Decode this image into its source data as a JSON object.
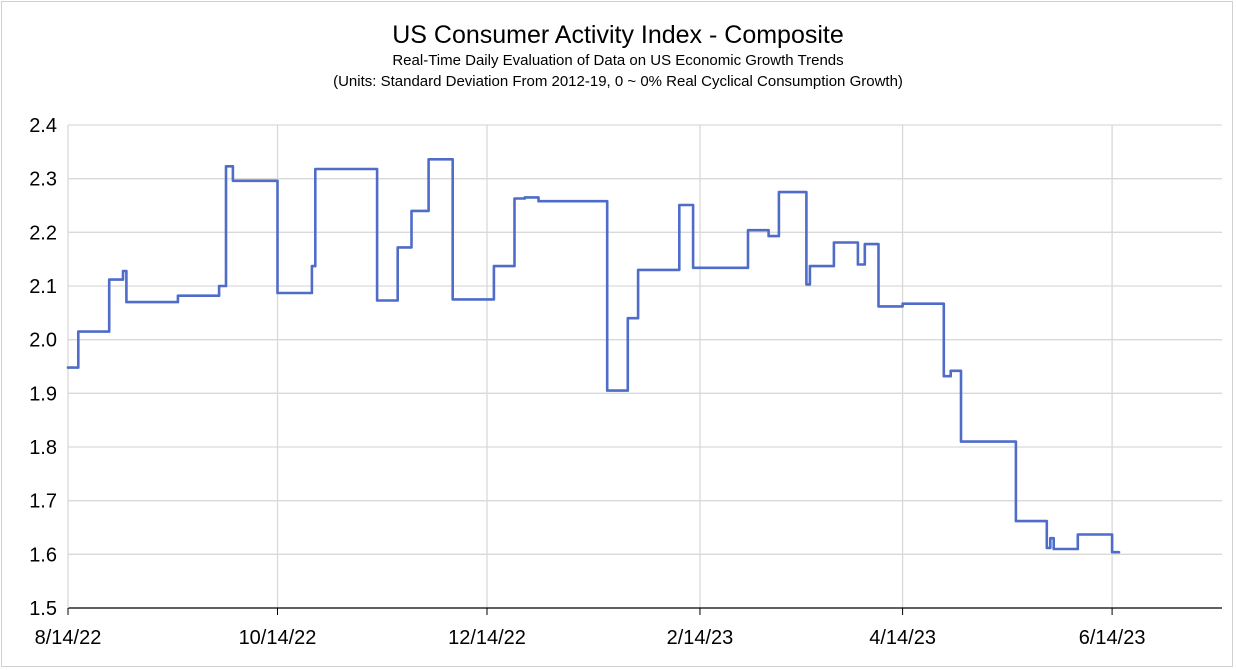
{
  "chart_data": {
    "type": "line",
    "title": "US Consumer Activity Index - Composite",
    "subtitle": "Real-Time Daily Evaluation of Data on US Economic Growth Trends",
    "subtitle2": "(Units: Standard Deviation From 2012-19, 0 ~ 0% Real Cyclical Consumption Growth)",
    "xlabel": "",
    "ylabel": "",
    "ylim": [
      1.5,
      2.4
    ],
    "yticks": [
      "2.4",
      "2.3",
      "2.2",
      "2.1",
      "2.0",
      "1.9",
      "1.8",
      "1.7",
      "1.6",
      "1.5"
    ],
    "xticks": [
      "8/14/22",
      "10/14/22",
      "12/14/22",
      "2/14/23",
      "4/14/23",
      "6/14/23"
    ],
    "xtick_days": [
      0,
      61,
      122,
      184,
      243,
      304
    ],
    "grid": true,
    "line_color": "#4f6cc9",
    "series": [
      {
        "name": "Composite",
        "x": [
          0,
          3,
          3,
          12,
          12,
          16,
          16,
          17,
          17,
          18,
          18,
          32,
          32,
          35,
          35,
          44,
          44,
          46,
          46,
          48,
          48,
          61,
          61,
          71,
          71,
          72,
          72,
          74,
          74,
          90,
          90,
          96,
          96,
          100,
          100,
          105,
          105,
          106,
          106,
          112,
          112,
          124,
          124,
          130,
          130,
          131,
          131,
          133,
          133,
          133,
          133,
          137,
          137,
          145,
          145,
          157,
          157,
          160,
          160,
          163,
          163,
          163,
          163,
          166,
          166,
          178,
          178,
          182,
          182,
          198,
          198,
          204,
          204,
          207,
          207,
          215,
          215,
          216,
          216,
          223,
          223,
          230,
          230,
          232,
          232,
          236,
          236,
          243,
          243,
          255,
          255,
          257,
          257,
          258,
          258,
          260,
          260,
          276,
          276,
          285,
          285,
          286,
          286,
          287,
          287,
          288,
          288,
          294,
          294,
          304,
          304,
          305,
          305,
          306
        ],
        "y": [
          1.948,
          1.948,
          2.015,
          2.015,
          2.112,
          2.112,
          2.128,
          2.128,
          2.07,
          2.07,
          2.07,
          2.07,
          2.082,
          2.082,
          2.082,
          2.082,
          2.1,
          2.1,
          2.323,
          2.323,
          2.296,
          2.296,
          2.087,
          2.087,
          2.137,
          2.137,
          2.318,
          2.318,
          2.318,
          2.318,
          2.073,
          2.073,
          2.172,
          2.172,
          2.24,
          2.24,
          2.336,
          2.336,
          2.336,
          2.336,
          2.075,
          2.075,
          2.137,
          2.137,
          2.263,
          2.263,
          2.263,
          2.263,
          2.265,
          2.265,
          2.265,
          2.265,
          2.258,
          2.258,
          2.258,
          2.258,
          1.905,
          1.905,
          1.905,
          1.905,
          1.905,
          1.905,
          2.04,
          2.04,
          2.13,
          2.13,
          2.251,
          2.251,
          2.134,
          2.134,
          2.204,
          2.204,
          2.193,
          2.193,
          2.275,
          2.275,
          2.103,
          2.103,
          2.137,
          2.137,
          2.181,
          2.181,
          2.14,
          2.14,
          2.178,
          2.178,
          2.062,
          2.062,
          2.067,
          2.067,
          1.932,
          1.932,
          1.942,
          1.942,
          1.942,
          1.942,
          1.81,
          1.81,
          1.662,
          1.662,
          1.612,
          1.612,
          1.63,
          1.63,
          1.61,
          1.61,
          1.61,
          1.61,
          1.637,
          1.637,
          1.604,
          1.604,
          1.604,
          1.604
        ]
      }
    ]
  }
}
